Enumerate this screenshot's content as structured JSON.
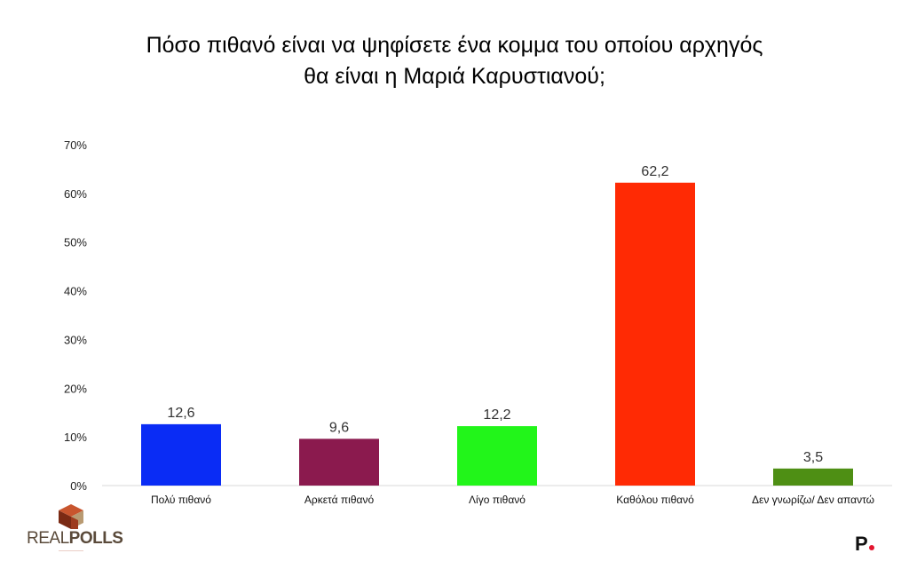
{
  "title": {
    "line1": "Πόσο πιθανό είναι να ψηφίσετε ένα κομμα του οποίου αρχηγός",
    "line2": "θα είναι η Μαριά Καρυστιανού;"
  },
  "chart_data": {
    "type": "bar",
    "categories": [
      "Πολύ πιθανό",
      "Αρκετά πιθανό",
      "Λίγο πιθανό",
      "Καθόλου πιθανό",
      "Δεν γνωρίζω/ Δεν απαντώ"
    ],
    "values": [
      12.6,
      9.6,
      12.2,
      62.2,
      3.5
    ],
    "value_labels": [
      "12,6",
      "9,6",
      "12,2",
      "62,2",
      "3,5"
    ],
    "colors": [
      "#0a2cf5",
      "#8b1a4e",
      "#22f51a",
      "#ff2a04",
      "#4e8f14"
    ],
    "ylim": [
      0,
      70
    ],
    "yticks": [
      0,
      10,
      20,
      30,
      40,
      50,
      60,
      70
    ],
    "ytick_labels": [
      "0%",
      "10%",
      "20%",
      "30%",
      "40%",
      "50%",
      "60%",
      "70%"
    ],
    "grid": false,
    "legend": "none",
    "xlabel": "",
    "ylabel": ""
  },
  "logos": {
    "realpolls_brand": "REALPOLLS",
    "realpolls_real": "REAL",
    "realpolls_polls": "POLLS",
    "publisher_letter": "P"
  }
}
